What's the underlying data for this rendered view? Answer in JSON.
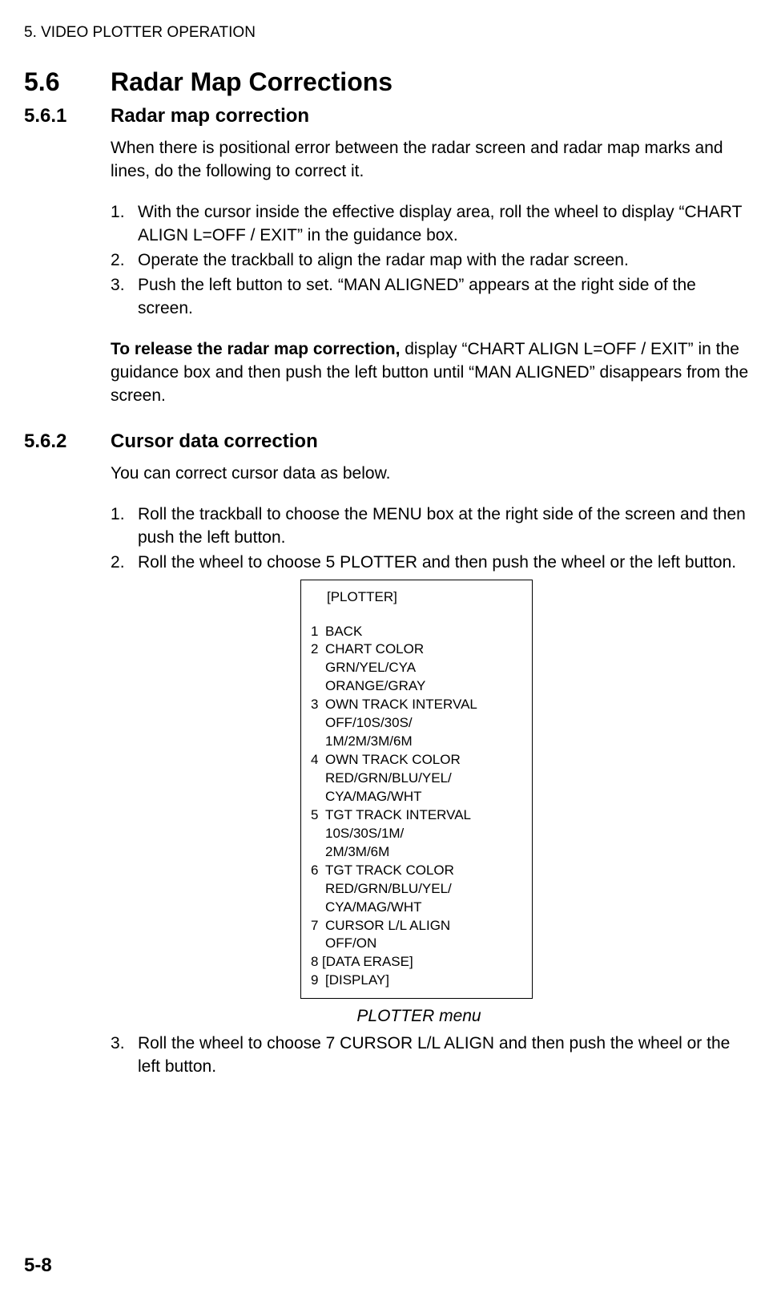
{
  "chapter_header": "5. VIDEO PLOTTER OPERATION",
  "section": {
    "number": "5.6",
    "title": "Radar Map Corrections"
  },
  "sub1": {
    "number": "5.6.1",
    "title": "Radar map correction",
    "intro": "When there is positional error between the radar screen and radar map marks and lines, do the following to correct it.",
    "steps": [
      "With the cursor inside the effective display area, roll the wheel to display “CHART ALIGN L=OFF / EXIT” in the guidance box.",
      "Operate the trackball to align the radar map with the radar screen.",
      "Push the left button to set. “MAN ALIGNED” appears at the right side of the screen."
    ],
    "release_bold": "To release the radar map correction,",
    "release_rest": " display “CHART ALIGN L=OFF / EXIT” in the guidance box and then push the left button until “MAN ALIGNED” disappears from the screen."
  },
  "sub2": {
    "number": "5.6.2",
    "title": "Cursor data correction",
    "intro": "You can correct cursor data as below.",
    "steps_a": [
      "Roll the trackball to choose the MENU box at the right side of the screen and then push the left button.",
      "Roll the wheel to choose 5 PLOTTER and then push the wheel or the left button."
    ],
    "steps_b": [
      "Roll the wheel to choose 7 CURSOR L/L ALIGN and then push the wheel or the left button."
    ]
  },
  "menu": {
    "title": "[PLOTTER]",
    "items": [
      {
        "num": "1",
        "lines": [
          "BACK"
        ]
      },
      {
        "num": "2",
        "lines": [
          "CHART COLOR",
          "GRN/YEL/CYA",
          "ORANGE/GRAY"
        ]
      },
      {
        "num": "3",
        "lines": [
          "OWN TRACK INTERVAL",
          "OFF/10S/30S/",
          "1M/2M/3M/6M"
        ]
      },
      {
        "num": "4",
        "lines": [
          "OWN TRACK COLOR",
          "RED/GRN/BLU/YEL/",
          "CYA/MAG/WHT"
        ]
      },
      {
        "num": "5",
        "lines": [
          "TGT TRACK INTERVAL",
          "10S/30S/1M/",
          "2M/3M/6M"
        ]
      },
      {
        "num": "6",
        "lines": [
          "TGT TRACK COLOR",
          "RED/GRN/BLU/YEL/",
          "CYA/MAG/WHT"
        ]
      },
      {
        "num": "7",
        "lines": [
          "CURSOR L/L ALIGN",
          "OFF/ON"
        ]
      },
      {
        "num": "8",
        "lines": [
          "[DATA ERASE]"
        ],
        "nospace": true
      },
      {
        "num": "9",
        "lines": [
          "[DISPLAY]"
        ]
      }
    ],
    "caption": "PLOTTER menu"
  },
  "page_number": "5-8"
}
